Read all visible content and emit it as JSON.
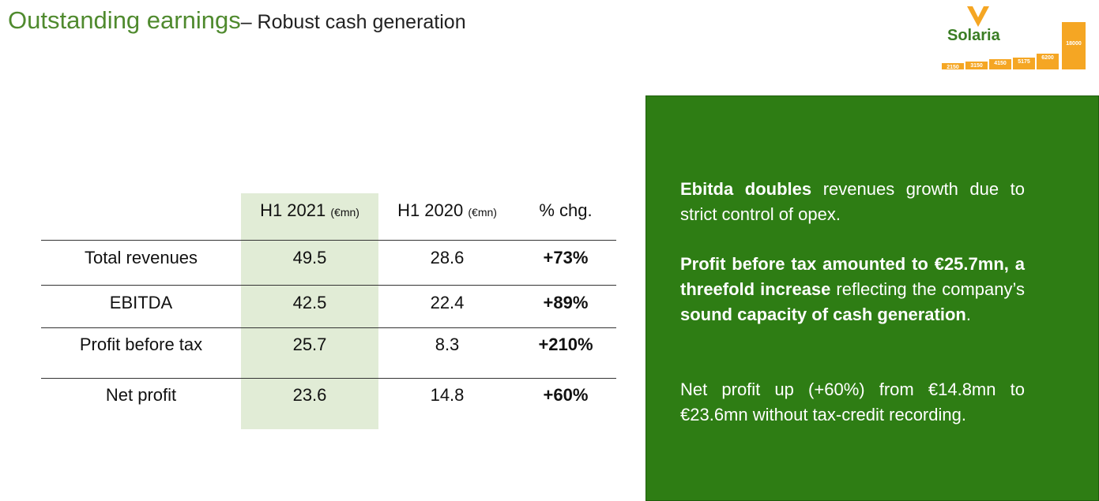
{
  "header": {
    "title": "Outstanding earnings",
    "subtitle": "– Robust cash generation"
  },
  "logo": {
    "name": "Solaria",
    "brand_color": "#3a7d24",
    "accent_color": "#f5a623",
    "icon": "chevron-v-icon",
    "bars": [
      "2150",
      "3150",
      "4150",
      "5175",
      "6200",
      "18000"
    ]
  },
  "table": {
    "headers": [
      {
        "label": "H1 2021",
        "unit": "(€mn)"
      },
      {
        "label": "H1 2020",
        "unit": "(€mn)"
      },
      {
        "label": "% chg.",
        "unit": ""
      }
    ],
    "rows": [
      {
        "label": "Total revenues",
        "h1_2021": "49.5",
        "h1_2020": "28.6",
        "chg": "+73%"
      },
      {
        "label": "EBITDA",
        "h1_2021": "42.5",
        "h1_2020": "22.4",
        "chg": "+89%"
      },
      {
        "label": "Profit before tax",
        "h1_2021": "25.7",
        "h1_2020": "8.3",
        "chg": "+210%"
      },
      {
        "label": "Net profit",
        "h1_2021": "23.6",
        "h1_2020": "14.8",
        "chg": "+60%"
      }
    ],
    "highlight_color": "#e1ecd6"
  },
  "panel": {
    "background": "#2e7d14",
    "p1": {
      "bold": "Ebitda doubles",
      "text": " revenues growth due to strict control of opex."
    },
    "p2": {
      "bold1": "Profit before tax amounted to €25.7mn, a threefold increase",
      "text1": " reflecting the company’s ",
      "bold2": "sound capacity of cash generation",
      "text2": "."
    },
    "p3": {
      "text": "Net profit up (+60%) from €14.8mn to €23.6mn without tax-credit recording."
    }
  }
}
